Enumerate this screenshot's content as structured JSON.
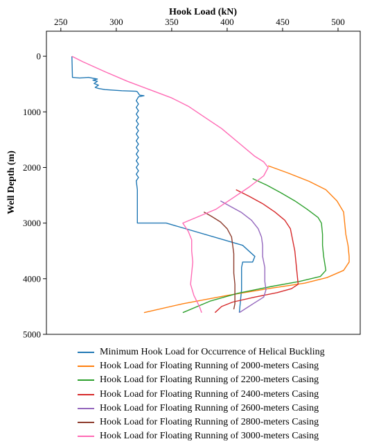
{
  "chart_data": {
    "type": "line",
    "xlabel": "Hook Load (kN)",
    "ylabel": "Well Depth (m)",
    "xlim": [
      237,
      520
    ],
    "ylim": [
      5000,
      -450
    ],
    "x_axis_position": "top",
    "y_inverted": true,
    "grid": false,
    "legend_position": "bottom",
    "x_ticks": [
      250,
      300,
      350,
      400,
      450,
      500
    ],
    "y_ticks": [
      0,
      1000,
      2000,
      3000,
      4000,
      5000
    ],
    "series": [
      {
        "name": "Minimum Hook Load for Occurrence of Helical Buckling",
        "color": "#1f77b4",
        "points": [
          [
            260,
            0
          ],
          [
            260.5,
            380
          ],
          [
            267,
            390
          ],
          [
            275,
            380
          ],
          [
            283,
            410
          ],
          [
            279,
            430
          ],
          [
            283,
            450
          ],
          [
            280,
            490
          ],
          [
            284,
            520
          ],
          [
            281,
            560
          ],
          [
            284,
            580
          ],
          [
            290,
            600
          ],
          [
            305,
            620
          ],
          [
            318,
            630
          ],
          [
            319,
            640
          ],
          [
            321,
            700
          ],
          [
            325,
            710
          ],
          [
            320,
            730
          ],
          [
            318,
            800
          ],
          [
            320,
            860
          ],
          [
            318,
            920
          ],
          [
            320,
            980
          ],
          [
            318,
            1040
          ],
          [
            320,
            1100
          ],
          [
            318,
            1160
          ],
          [
            320,
            1220
          ],
          [
            318,
            1280
          ],
          [
            320,
            1340
          ],
          [
            318,
            1400
          ],
          [
            320,
            1460
          ],
          [
            318,
            1520
          ],
          [
            320,
            1580
          ],
          [
            318,
            1640
          ],
          [
            320,
            1700
          ],
          [
            318,
            1760
          ],
          [
            320,
            1820
          ],
          [
            318,
            1880
          ],
          [
            320,
            1940
          ],
          [
            318,
            2000
          ],
          [
            320,
            2060
          ],
          [
            318,
            2120
          ],
          [
            320,
            2180
          ],
          [
            318,
            2240
          ],
          [
            319,
            2400
          ],
          [
            319,
            2800
          ],
          [
            319,
            3000
          ],
          [
            345,
            3000
          ],
          [
            414,
            3400
          ],
          [
            425,
            3600
          ],
          [
            423,
            3700
          ],
          [
            414,
            3700
          ],
          [
            413,
            3800
          ],
          [
            413,
            4000
          ],
          [
            413,
            4200
          ],
          [
            412,
            4400
          ],
          [
            411,
            4610
          ]
        ]
      },
      {
        "name": "Hook Load for Floating Running of 2000-meters Casing",
        "color": "#ff7f0e",
        "points": [
          [
            437,
            1970
          ],
          [
            455,
            2100
          ],
          [
            474,
            2250
          ],
          [
            489,
            2400
          ],
          [
            499,
            2600
          ],
          [
            505,
            2800
          ],
          [
            506,
            3000
          ],
          [
            507,
            3200
          ],
          [
            509,
            3400
          ],
          [
            510,
            3600
          ],
          [
            510,
            3700
          ],
          [
            505,
            3850
          ],
          [
            490,
            3980
          ],
          [
            470,
            4080
          ],
          [
            440,
            4170
          ],
          [
            400,
            4300
          ],
          [
            360,
            4450
          ],
          [
            325,
            4610
          ]
        ]
      },
      {
        "name": "Hook Load for Floating Running of 2200-meters Casing",
        "color": "#2ca02c",
        "points": [
          [
            423,
            2200
          ],
          [
            436,
            2320
          ],
          [
            448,
            2450
          ],
          [
            461,
            2600
          ],
          [
            472,
            2750
          ],
          [
            482,
            2900
          ],
          [
            485,
            3000
          ],
          [
            486,
            3200
          ],
          [
            486,
            3400
          ],
          [
            487,
            3600
          ],
          [
            489,
            3850
          ],
          [
            484,
            3960
          ],
          [
            465,
            4050
          ],
          [
            440,
            4140
          ],
          [
            410,
            4260
          ],
          [
            385,
            4400
          ],
          [
            360,
            4610
          ]
        ]
      },
      {
        "name": "Hook Load for Floating Running of 2400-meters Casing",
        "color": "#d62728",
        "points": [
          [
            408,
            2400
          ],
          [
            420,
            2520
          ],
          [
            432,
            2650
          ],
          [
            443,
            2800
          ],
          [
            452,
            2950
          ],
          [
            457,
            3100
          ],
          [
            459,
            3300
          ],
          [
            461,
            3500
          ],
          [
            462,
            3700
          ],
          [
            463,
            3900
          ],
          [
            464,
            4100
          ],
          [
            458,
            4180
          ],
          [
            445,
            4250
          ],
          [
            425,
            4330
          ],
          [
            405,
            4420
          ],
          [
            395,
            4500
          ],
          [
            389,
            4610
          ]
        ]
      },
      {
        "name": "Hook Load for Floating Running of 2600-meters Casing",
        "color": "#9467bd",
        "points": [
          [
            394,
            2600
          ],
          [
            403,
            2700
          ],
          [
            413,
            2810
          ],
          [
            422,
            2950
          ],
          [
            428,
            3100
          ],
          [
            431,
            3250
          ],
          [
            432,
            3400
          ],
          [
            432,
            3600
          ],
          [
            434,
            3800
          ],
          [
            434,
            4050
          ],
          [
            435,
            4200
          ],
          [
            433,
            4330
          ],
          [
            425,
            4430
          ],
          [
            418,
            4520
          ],
          [
            411,
            4610
          ]
        ]
      },
      {
        "name": "Hook Load for Floating Running of 2800-meters Casing",
        "color": "#8c3a2b",
        "points": [
          [
            379,
            2800
          ],
          [
            386,
            2880
          ],
          [
            394,
            2980
          ],
          [
            400,
            3100
          ],
          [
            404,
            3250
          ],
          [
            405,
            3400
          ],
          [
            406,
            3550
          ],
          [
            406,
            3700
          ],
          [
            406,
            3900
          ],
          [
            407,
            4100
          ],
          [
            407,
            4300
          ],
          [
            407,
            4450
          ],
          [
            406,
            4550
          ]
        ]
      },
      {
        "name": "Hook Load for Floating Running of 3000-meters Casing",
        "color": "#ff69b4",
        "points": [
          [
            260,
            0
          ],
          [
            270,
            100
          ],
          [
            290,
            280
          ],
          [
            310,
            450
          ],
          [
            330,
            600
          ],
          [
            350,
            750
          ],
          [
            365,
            900
          ],
          [
            380,
            1100
          ],
          [
            395,
            1300
          ],
          [
            410,
            1550
          ],
          [
            425,
            1800
          ],
          [
            433,
            1900
          ],
          [
            437,
            2000
          ],
          [
            433,
            2150
          ],
          [
            420,
            2350
          ],
          [
            405,
            2550
          ],
          [
            390,
            2750
          ],
          [
            372,
            2900
          ],
          [
            360,
            3000
          ],
          [
            365,
            3150
          ],
          [
            368,
            3300
          ],
          [
            368,
            3500
          ],
          [
            369,
            3700
          ],
          [
            368,
            3900
          ],
          [
            367,
            4100
          ],
          [
            370,
            4300
          ],
          [
            375,
            4500
          ],
          [
            377,
            4610
          ]
        ]
      }
    ]
  }
}
